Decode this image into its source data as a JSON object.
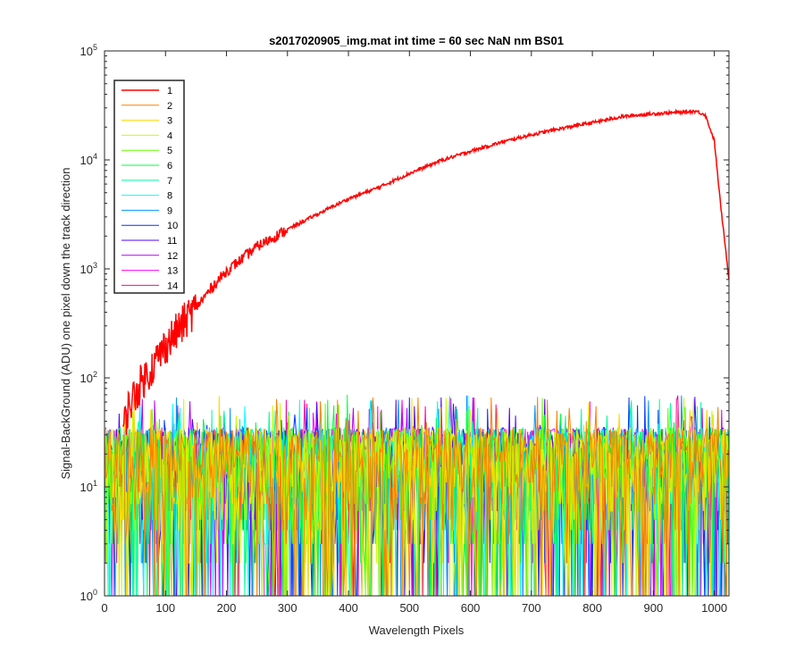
{
  "chart_data": {
    "type": "line",
    "title": "s2017020905_img.mat int time = 60 sec  NaN nm BS01",
    "xlabel": "Wavelength Pixels",
    "ylabel": "Signal-BackGround (ADU) one pixel down the track direction",
    "xlim": [
      0,
      1024
    ],
    "ylim": [
      1,
      100000
    ],
    "yscale": "log",
    "xticks": [
      "0",
      "100",
      "200",
      "300",
      "400",
      "500",
      "600",
      "700",
      "800",
      "900",
      "1000"
    ],
    "yticks": [
      {
        "base": "10",
        "exp": "0"
      },
      {
        "base": "10",
        "exp": "1"
      },
      {
        "base": "10",
        "exp": "2"
      },
      {
        "base": "10",
        "exp": "3"
      },
      {
        "base": "10",
        "exp": "4"
      },
      {
        "base": "10",
        "exp": "5"
      }
    ],
    "grid": false,
    "legend_position": "top-left",
    "series": [
      {
        "name": "1",
        "color": "#ff0000",
        "points": [
          [
            30,
            33
          ],
          [
            40,
            55
          ],
          [
            50,
            70
          ],
          [
            60,
            90
          ],
          [
            80,
            130
          ],
          [
            100,
            200
          ],
          [
            120,
            270
          ],
          [
            140,
            380
          ],
          [
            160,
            520
          ],
          [
            180,
            720
          ],
          [
            200,
            950
          ],
          [
            250,
            1600
          ],
          [
            300,
            2300
          ],
          [
            350,
            3200
          ],
          [
            400,
            4400
          ],
          [
            450,
            5600
          ],
          [
            500,
            7500
          ],
          [
            550,
            9800
          ],
          [
            600,
            12000
          ],
          [
            650,
            14500
          ],
          [
            700,
            17000
          ],
          [
            750,
            19500
          ],
          [
            800,
            22000
          ],
          [
            850,
            25000
          ],
          [
            900,
            26500
          ],
          [
            950,
            27500
          ],
          [
            970,
            28000
          ],
          [
            985,
            26000
          ],
          [
            1000,
            15000
          ],
          [
            1010,
            4000
          ],
          [
            1024,
            800
          ]
        ]
      },
      {
        "name": "2",
        "color": "#ff7f00"
      },
      {
        "name": "3",
        "color": "#ffd700"
      },
      {
        "name": "4",
        "color": "#c8ff00"
      },
      {
        "name": "5",
        "color": "#66ff00"
      },
      {
        "name": "6",
        "color": "#00ff40"
      },
      {
        "name": "7",
        "color": "#00ffa0"
      },
      {
        "name": "8",
        "color": "#00ffff"
      },
      {
        "name": "9",
        "color": "#0096ff"
      },
      {
        "name": "10",
        "color": "#0032ff"
      },
      {
        "name": "11",
        "color": "#4b00ff"
      },
      {
        "name": "12",
        "color": "#b400ff"
      },
      {
        "name": "13",
        "color": "#ff00ff"
      },
      {
        "name": "14",
        "color": "#ff0096"
      }
    ],
    "noise_floor": {
      "typical_range": [
        2,
        35
      ],
      "peak": 70
    }
  }
}
